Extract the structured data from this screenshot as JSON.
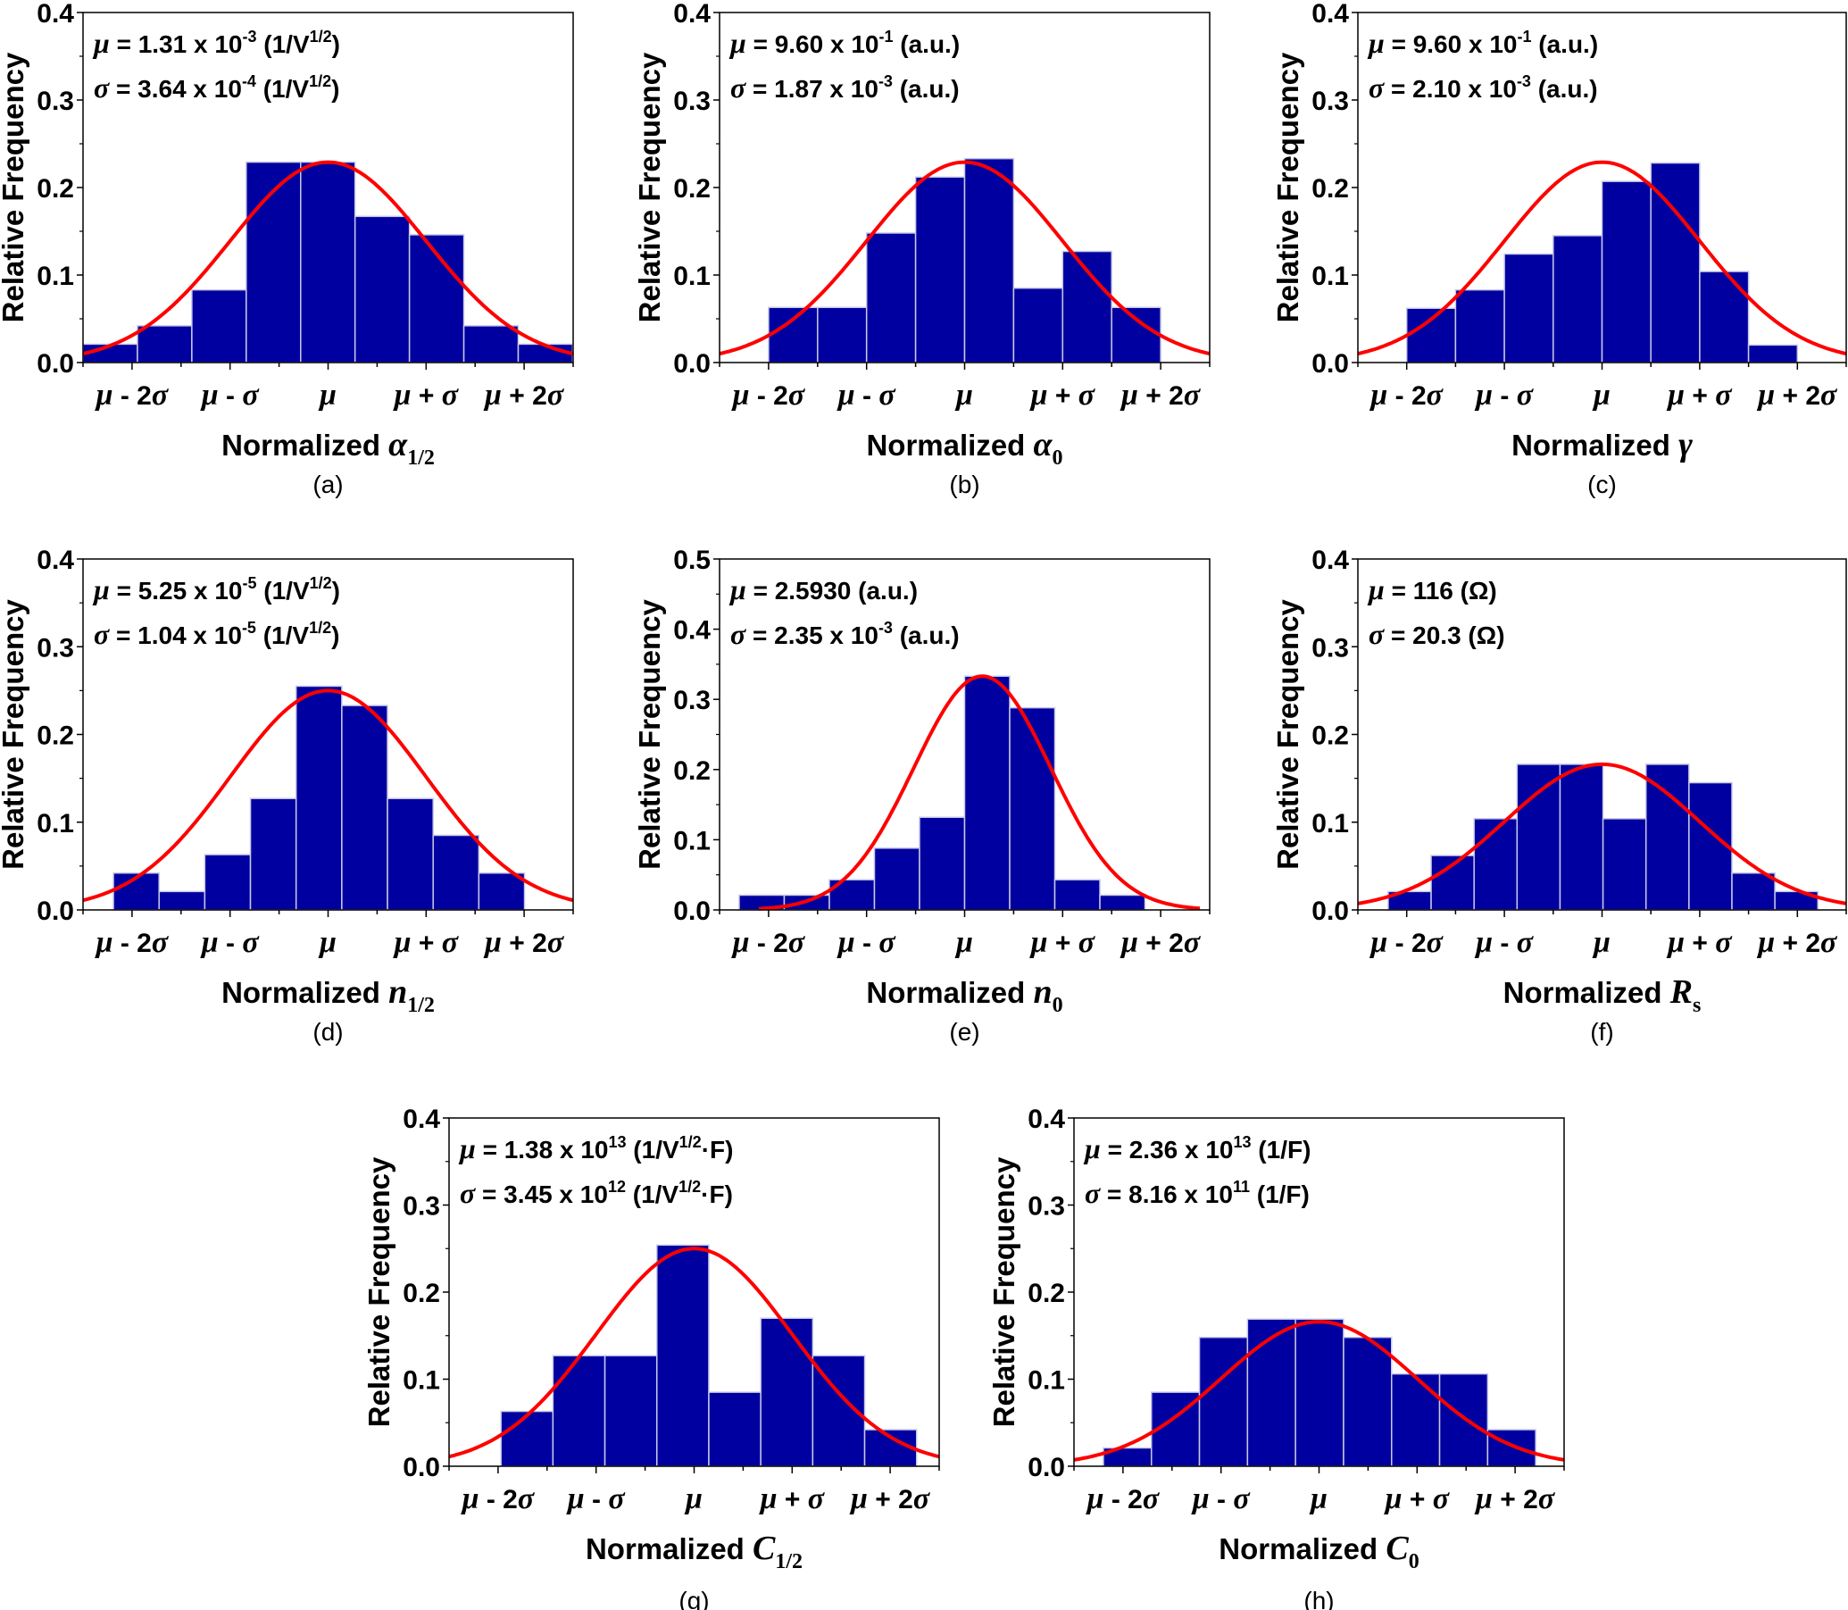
{
  "figure": {
    "bar_color": "#0000A0",
    "bar_edge_color": "#C8C8E8",
    "curve_color": "#FF0000",
    "y_axis_label": "Relative Frequency",
    "x_tick_labels": [
      {
        "sym": "μ",
        "rest": " - 2",
        "sym2": "σ"
      },
      {
        "sym": "μ",
        "rest": " - ",
        "sym2": "σ"
      },
      {
        "sym": "μ",
        "rest": "",
        "sym2": ""
      },
      {
        "sym": "μ",
        "rest": " + ",
        "sym2": "σ"
      },
      {
        "sym": "μ",
        "rest": " + 2",
        "sym2": "σ"
      }
    ],
    "x_label_prefix": "Normalized"
  },
  "chart_data": [
    {
      "id": "a",
      "type": "bar",
      "caption": "(a)",
      "xlabel_symbol": "α",
      "xlabel_subscript": "1/2",
      "xlim_sigma": [
        -2.5,
        2.5
      ],
      "ylim": [
        0,
        0.4
      ],
      "yticks": [
        "0.0",
        "0.1",
        "0.2",
        "0.3",
        "0.4"
      ],
      "stats": {
        "mu": {
          "mant": "1.31 x 10",
          "exp": "-3",
          "unit_pre": " (1/V",
          "unit_sup": "1/2",
          "unit_post": ")"
        },
        "sigma": {
          "mant": "3.64 x 10",
          "exp": "-4",
          "unit_pre": " (1/V",
          "unit_sup": "1/2",
          "unit_post": ")"
        }
      },
      "bins_start_sigma": -2.5,
      "bin_width_sigma": 0.555,
      "values": [
        0.021,
        0.042,
        0.083,
        0.229,
        0.229,
        0.167,
        0.146,
        0.042,
        0.021
      ],
      "fit": {
        "center_sigma": 0.0,
        "peak": 0.229
      }
    },
    {
      "id": "b",
      "type": "bar",
      "caption": "(b)",
      "xlabel_symbol": "α",
      "xlabel_subscript": "0",
      "xlim_sigma": [
        -2.5,
        2.5
      ],
      "ylim": [
        0,
        0.4
      ],
      "yticks": [
        "0.0",
        "0.1",
        "0.2",
        "0.3",
        "0.4"
      ],
      "stats": {
        "mu": {
          "mant": "9.60 x 10",
          "exp": "-1",
          "unit_pre": " (a.u.)",
          "unit_sup": "",
          "unit_post": ""
        },
        "sigma": {
          "mant": "1.87 x 10",
          "exp": "-3",
          "unit_pre": " (a.u.)",
          "unit_sup": "",
          "unit_post": ""
        }
      },
      "bins_start_sigma": -2.0,
      "bin_width_sigma": 0.5,
      "values": [
        0.063,
        0.063,
        0.148,
        0.212,
        0.233,
        0.085,
        0.127,
        0.063
      ],
      "fit": {
        "center_sigma": 0.0,
        "peak": 0.229
      }
    },
    {
      "id": "c",
      "type": "bar",
      "caption": "(c)",
      "xlabel_symbol": "γ",
      "xlabel_subscript": "",
      "xlim_sigma": [
        -2.5,
        2.5
      ],
      "ylim": [
        0,
        0.4
      ],
      "yticks": [
        "0.0",
        "0.1",
        "0.2",
        "0.3",
        "0.4"
      ],
      "stats": {
        "mu": {
          "mant": "9.60 x 10",
          "exp": "-1",
          "unit_pre": " (a.u.)",
          "unit_sup": "",
          "unit_post": ""
        },
        "sigma": {
          "mant": "2.10 x 10",
          "exp": "-3",
          "unit_pre": " (a.u.)",
          "unit_sup": "",
          "unit_post": ""
        }
      },
      "bins_start_sigma": -2.0,
      "bin_width_sigma": 0.5,
      "values": [
        0.062,
        0.083,
        0.124,
        0.145,
        0.207,
        0.228,
        0.104,
        0.02
      ],
      "fit": {
        "center_sigma": 0.0,
        "peak": 0.229
      }
    },
    {
      "id": "d",
      "type": "bar",
      "caption": "(d)",
      "xlabel_symbol": "n",
      "xlabel_subscript": "1/2",
      "xlim_sigma": [
        -2.5,
        2.5
      ],
      "ylim": [
        0,
        0.4
      ],
      "yticks": [
        "0.0",
        "0.1",
        "0.2",
        "0.3",
        "0.4"
      ],
      "stats": {
        "mu": {
          "mant": "5.25 x 10",
          "exp": "-5",
          "unit_pre": " (1/V",
          "unit_sup": "1/2",
          "unit_post": ")"
        },
        "sigma": {
          "mant": "1.04 x 10",
          "exp": "-5",
          "unit_pre": " (1/V",
          "unit_sup": "1/2",
          "unit_post": ")"
        }
      },
      "bins_start_sigma": -2.19,
      "bin_width_sigma": 0.466,
      "values": [
        0.042,
        0.021,
        0.063,
        0.127,
        0.255,
        0.233,
        0.127,
        0.085,
        0.042
      ],
      "fit": {
        "center_sigma": 0.0,
        "peak": 0.25
      }
    },
    {
      "id": "e",
      "type": "bar",
      "caption": "(e)",
      "xlabel_symbol": "n",
      "xlabel_subscript": "0",
      "xlim_sigma": [
        -2.5,
        2.5
      ],
      "ylim": [
        0,
        0.5
      ],
      "yticks": [
        "0.0",
        "0.1",
        "0.2",
        "0.3",
        "0.4",
        "0.5"
      ],
      "stats": {
        "mu": {
          "mant": "2.5930",
          "exp": "",
          "unit_pre": " (a.u.)",
          "unit_sup": "",
          "unit_post": ""
        },
        "sigma": {
          "mant": "2.35 x 10",
          "exp": "-3",
          "unit_pre": " (a.u.)",
          "unit_sup": "",
          "unit_post": ""
        }
      },
      "bins_start_sigma": -2.3,
      "bin_width_sigma": 0.46,
      "values": [
        0.021,
        0.021,
        0.043,
        0.088,
        0.132,
        0.333,
        0.288,
        0.043,
        0.021
      ],
      "fit": {
        "center_sigma": 0.18,
        "peak": 0.333,
        "width_sigma": 0.7,
        "x_range_sigma": [
          -2.1,
          2.4
        ]
      }
    },
    {
      "id": "f",
      "type": "bar",
      "caption": "(f)",
      "xlabel_symbol": "R",
      "xlabel_subscript": "s",
      "xlim_sigma": [
        -2.5,
        2.5
      ],
      "ylim": [
        0,
        0.4
      ],
      "yticks": [
        "0.0",
        "0.1",
        "0.2",
        "0.3",
        "0.4"
      ],
      "stats": {
        "mu": {
          "mant": "116 (Ω)",
          "exp": "",
          "unit_pre": "",
          "unit_sup": "",
          "unit_post": ""
        },
        "sigma": {
          "mant": "20.3 (Ω)",
          "exp": "",
          "unit_pre": "",
          "unit_sup": "",
          "unit_post": ""
        }
      },
      "bins_start_sigma": -2.19,
      "bin_width_sigma": 0.44,
      "values": [
        0.021,
        0.062,
        0.104,
        0.166,
        0.166,
        0.104,
        0.166,
        0.145,
        0.042,
        0.021
      ],
      "fit": {
        "center_sigma": 0.0,
        "peak": 0.166
      }
    },
    {
      "id": "g",
      "type": "bar",
      "caption": "(g)",
      "xlabel_symbol": "C",
      "xlabel_subscript": "1/2",
      "xlim_sigma": [
        -2.5,
        2.5
      ],
      "ylim": [
        0,
        0.4
      ],
      "yticks": [
        "0.0",
        "0.1",
        "0.2",
        "0.3",
        "0.4"
      ],
      "stats": {
        "mu": {
          "mant": "1.38 x 10",
          "exp": "13",
          "unit_pre": " (1/V",
          "unit_sup": "1/2",
          "unit_post": "·F)"
        },
        "sigma": {
          "mant": "3.45 x 10",
          "exp": "12",
          "unit_pre": " (1/V",
          "unit_sup": "1/2",
          "unit_post": "·F)"
        }
      },
      "bins_start_sigma": -1.97,
      "bin_width_sigma": 0.53,
      "values": [
        0.063,
        0.127,
        0.127,
        0.254,
        0.085,
        0.17,
        0.127,
        0.042
      ],
      "fit": {
        "center_sigma": 0.0,
        "peak": 0.25
      }
    },
    {
      "id": "h",
      "type": "bar",
      "caption": "(h)",
      "xlabel_symbol": "C",
      "xlabel_subscript": "0",
      "xlim_sigma": [
        -2.5,
        2.5
      ],
      "ylim": [
        0,
        0.4
      ],
      "yticks": [
        "0.0",
        "0.1",
        "0.2",
        "0.3",
        "0.4"
      ],
      "stats": {
        "mu": {
          "mant": "2.36 x 10",
          "exp": "13",
          "unit_pre": " (1/F)",
          "unit_sup": "",
          "unit_post": ""
        },
        "sigma": {
          "mant": "8.16 x 10",
          "exp": "11",
          "unit_pre": " (1/F)",
          "unit_sup": "",
          "unit_post": ""
        }
      },
      "bins_start_sigma": -2.2,
      "bin_width_sigma": 0.49,
      "values": [
        0.021,
        0.085,
        0.148,
        0.169,
        0.169,
        0.148,
        0.106,
        0.106,
        0.042
      ],
      "fit": {
        "center_sigma": 0.0,
        "peak": 0.166
      }
    }
  ]
}
